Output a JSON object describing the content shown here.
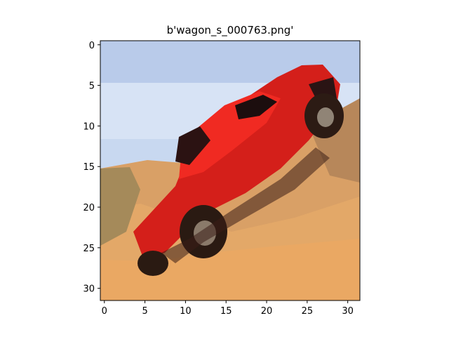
{
  "figure": {
    "title": "b'wagon_s_000763.png'"
  },
  "axes": {
    "y_ticks": [
      {
        "value": 0,
        "label": "0"
      },
      {
        "value": 5,
        "label": "5"
      },
      {
        "value": 10,
        "label": "10"
      },
      {
        "value": 15,
        "label": "15"
      },
      {
        "value": 20,
        "label": "20"
      },
      {
        "value": 25,
        "label": "25"
      },
      {
        "value": 30,
        "label": "30"
      }
    ],
    "x_ticks": [
      {
        "value": 0,
        "label": "0"
      },
      {
        "value": 5,
        "label": "5"
      },
      {
        "value": 10,
        "label": "10"
      },
      {
        "value": 15,
        "label": "15"
      },
      {
        "value": 20,
        "label": "20"
      },
      {
        "value": 25,
        "label": "25"
      },
      {
        "value": 30,
        "label": "30"
      }
    ],
    "x_range": [
      -0.5,
      31.5
    ],
    "y_range": [
      31.5,
      -0.5
    ],
    "grid": false
  },
  "image": {
    "description_colors": {
      "sky": "#c8d8f0",
      "sand": "#e2a565",
      "dune_shadow": "#b7875a",
      "truck_red": "#e0201c",
      "tire_dark": "#2a1a12"
    }
  }
}
